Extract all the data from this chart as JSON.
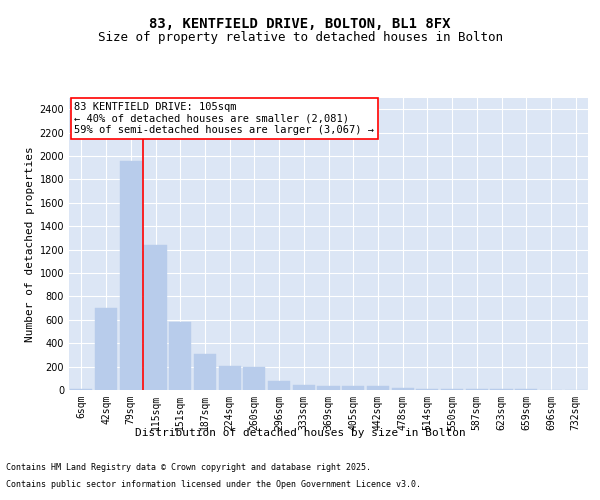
{
  "title": "83, KENTFIELD DRIVE, BOLTON, BL1 8FX",
  "subtitle": "Size of property relative to detached houses in Bolton",
  "xlabel": "Distribution of detached houses by size in Bolton",
  "ylabel": "Number of detached properties",
  "categories": [
    "6sqm",
    "42sqm",
    "79sqm",
    "115sqm",
    "151sqm",
    "187sqm",
    "224sqm",
    "260sqm",
    "296sqm",
    "333sqm",
    "369sqm",
    "405sqm",
    "442sqm",
    "478sqm",
    "514sqm",
    "550sqm",
    "587sqm",
    "623sqm",
    "659sqm",
    "696sqm",
    "732sqm"
  ],
  "values": [
    10,
    700,
    1960,
    1240,
    580,
    305,
    205,
    200,
    80,
    45,
    35,
    30,
    30,
    15,
    12,
    12,
    5,
    5,
    8,
    2,
    1
  ],
  "bar_color": "#b8cceb",
  "bar_edgecolor": "#b8cceb",
  "vline_pos": 2.5,
  "vline_color": "red",
  "annotation_text": "83 KENTFIELD DRIVE: 105sqm\n← 40% of detached houses are smaller (2,081)\n59% of semi-detached houses are larger (3,067) →",
  "annotation_box_facecolor": "white",
  "annotation_box_edgecolor": "red",
  "ylim": [
    0,
    2500
  ],
  "yticks": [
    0,
    200,
    400,
    600,
    800,
    1000,
    1200,
    1400,
    1600,
    1800,
    2000,
    2200,
    2400
  ],
  "bg_color": "#dce6f5",
  "grid_color": "white",
  "footer_line1": "Contains HM Land Registry data © Crown copyright and database right 2025.",
  "footer_line2": "Contains public sector information licensed under the Open Government Licence v3.0.",
  "title_fontsize": 10,
  "subtitle_fontsize": 9,
  "axis_label_fontsize": 8,
  "tick_fontsize": 7,
  "annotation_fontsize": 7.5,
  "footer_fontsize": 6
}
